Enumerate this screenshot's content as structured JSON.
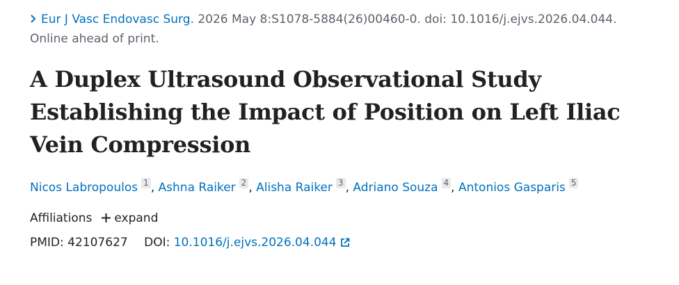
{
  "citation": {
    "journal": "Eur J Vasc Endovasc Surg",
    "details": ". 2026 May 8:S1078-5884(26)00460-0. doi: 10.1016/j.ejvs.2026.04.044.",
    "status": "Online ahead of print."
  },
  "title": "A Duplex Ultrasound Observational Study Establishing the Impact of Position on Left Iliac Vein Compression",
  "authors": [
    {
      "name": "Nicos Labropoulos",
      "affiliation": "1"
    },
    {
      "name": "Ashna Raiker",
      "affiliation": "2"
    },
    {
      "name": "Alisha Raiker",
      "affiliation": "3"
    },
    {
      "name": "Adriano Souza",
      "affiliation": "4"
    },
    {
      "name": "Antonios Gasparis",
      "affiliation": "5"
    }
  ],
  "author_separator": ",",
  "affiliations": {
    "label": "Affiliations",
    "toggle": "expand"
  },
  "identifiers": {
    "pmid_label": "PMID:",
    "pmid": "42107627",
    "doi_label": "DOI:",
    "doi": "10.1016/j.ejvs.2026.04.044"
  }
}
